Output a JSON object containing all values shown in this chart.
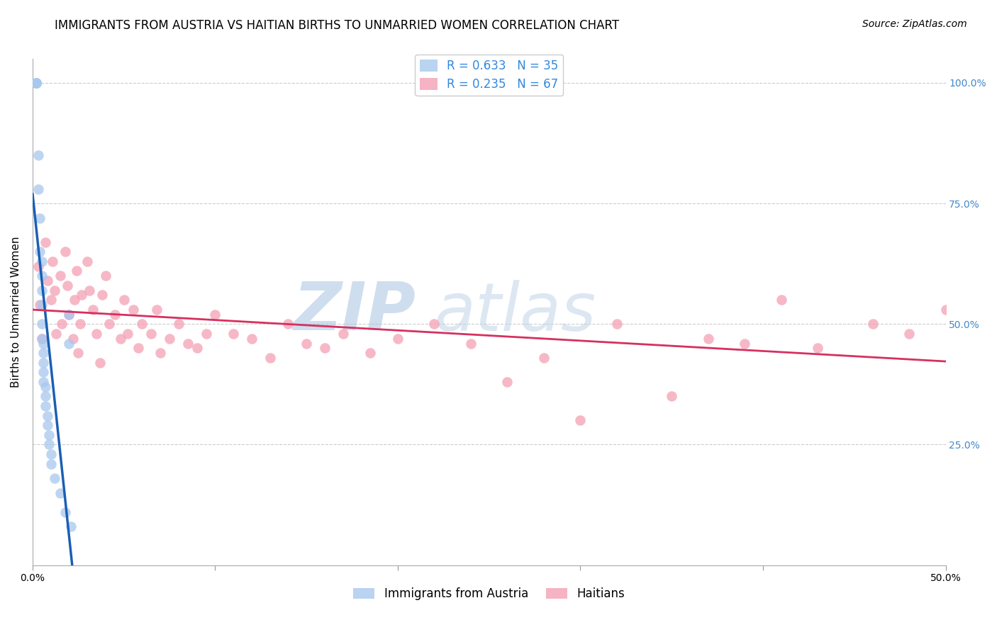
{
  "title": "IMMIGRANTS FROM AUSTRIA VS HAITIAN BIRTHS TO UNMARRIED WOMEN CORRELATION CHART",
  "source": "Source: ZipAtlas.com",
  "ylabel": "Births to Unmarried Women",
  "legend_austria": "Immigrants from Austria",
  "legend_haitians": "Haitians",
  "legend_austria_R": "R = 0.633",
  "legend_austria_N": "N = 35",
  "legend_haitians_R": "R = 0.235",
  "legend_haitians_N": "N = 67",
  "austria_color": "#a8c8ee",
  "austria_line_color": "#1a5fb4",
  "haitian_color": "#f4a0b5",
  "haitian_line_color": "#d63060",
  "background": "#ffffff",
  "grid_color": "#cccccc",
  "xlim": [
    0.0,
    0.5
  ],
  "ylim": [
    0.0,
    1.05
  ],
  "yticks": [
    0.0,
    0.25,
    0.5,
    0.75,
    1.0
  ],
  "ytick_labels_right": [
    "",
    "25.0%",
    "50.0%",
    "75.0%",
    "100.0%"
  ],
  "xticks": [
    0.0,
    0.1,
    0.2,
    0.3,
    0.4,
    0.5
  ],
  "xtick_labels": [
    "0.0%",
    "",
    "",
    "",
    "",
    "50.0%"
  ],
  "austria_x": [
    0.002,
    0.002,
    0.002,
    0.002,
    0.002,
    0.003,
    0.003,
    0.004,
    0.004,
    0.005,
    0.005,
    0.005,
    0.005,
    0.005,
    0.005,
    0.006,
    0.006,
    0.006,
    0.006,
    0.006,
    0.007,
    0.007,
    0.007,
    0.008,
    0.008,
    0.009,
    0.009,
    0.01,
    0.01,
    0.012,
    0.015,
    0.018,
    0.02,
    0.02,
    0.021
  ],
  "austria_y": [
    1.0,
    1.0,
    1.0,
    1.0,
    1.0,
    0.85,
    0.78,
    0.72,
    0.65,
    0.63,
    0.6,
    0.57,
    0.54,
    0.5,
    0.47,
    0.46,
    0.44,
    0.42,
    0.4,
    0.38,
    0.37,
    0.35,
    0.33,
    0.31,
    0.29,
    0.27,
    0.25,
    0.23,
    0.21,
    0.18,
    0.15,
    0.11,
    0.46,
    0.52,
    0.08
  ],
  "haitian_x": [
    0.003,
    0.004,
    0.005,
    0.007,
    0.008,
    0.01,
    0.011,
    0.012,
    0.013,
    0.015,
    0.016,
    0.018,
    0.019,
    0.02,
    0.022,
    0.023,
    0.024,
    0.025,
    0.026,
    0.027,
    0.03,
    0.031,
    0.033,
    0.035,
    0.037,
    0.038,
    0.04,
    0.042,
    0.045,
    0.048,
    0.05,
    0.052,
    0.055,
    0.058,
    0.06,
    0.065,
    0.068,
    0.07,
    0.075,
    0.08,
    0.085,
    0.09,
    0.095,
    0.1,
    0.11,
    0.12,
    0.13,
    0.14,
    0.15,
    0.16,
    0.17,
    0.185,
    0.2,
    0.22,
    0.24,
    0.26,
    0.28,
    0.3,
    0.32,
    0.35,
    0.37,
    0.39,
    0.41,
    0.43,
    0.46,
    0.48,
    0.5
  ],
  "haitian_y": [
    0.62,
    0.54,
    0.47,
    0.67,
    0.59,
    0.55,
    0.63,
    0.57,
    0.48,
    0.6,
    0.5,
    0.65,
    0.58,
    0.52,
    0.47,
    0.55,
    0.61,
    0.44,
    0.5,
    0.56,
    0.63,
    0.57,
    0.53,
    0.48,
    0.42,
    0.56,
    0.6,
    0.5,
    0.52,
    0.47,
    0.55,
    0.48,
    0.53,
    0.45,
    0.5,
    0.48,
    0.53,
    0.44,
    0.47,
    0.5,
    0.46,
    0.45,
    0.48,
    0.52,
    0.48,
    0.47,
    0.43,
    0.5,
    0.46,
    0.45,
    0.48,
    0.44,
    0.47,
    0.5,
    0.46,
    0.38,
    0.43,
    0.3,
    0.5,
    0.35,
    0.47,
    0.46,
    0.55,
    0.45,
    0.5,
    0.48,
    0.53
  ],
  "watermark_main": "ZIP",
  "watermark_sub": "atlas",
  "watermark_color": "#c5d8ee",
  "title_fontsize": 12,
  "source_fontsize": 10,
  "axis_label_fontsize": 11,
  "tick_fontsize": 10,
  "legend_fontsize": 12,
  "marker_size": 110
}
